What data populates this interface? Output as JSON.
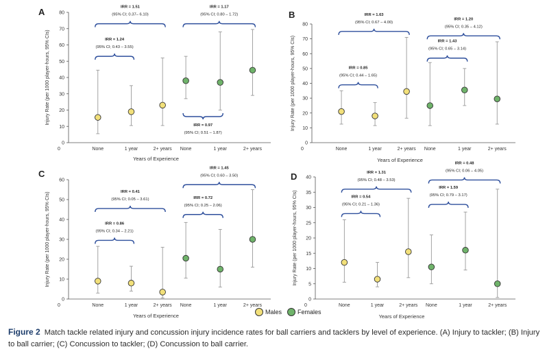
{
  "colors": {
    "male": "#f2e07a",
    "female": "#6fb36a",
    "bracket": "#2e4f9c",
    "error": "#999999",
    "axis": "#555555"
  },
  "legend": {
    "males": "Males",
    "females": "Females"
  },
  "caption": {
    "label": "Figure 2",
    "text": "Match tackle related injury and concussion injury incidence rates for ball carriers and tacklers by level of experience. (A) Injury to tackler; (B) Injury to ball carrier; (C) Concussion to tackler; (D) Concussion to ball carrier."
  },
  "chart_data": [
    {
      "panel": "A",
      "type": "scatter",
      "ylabel": "Injury Rate (per 1000 player-hours, 95% CIs)",
      "xlabel": "Years of Experience",
      "ylim": [
        0,
        80
      ],
      "yticks": [
        0,
        10,
        20,
        30,
        40,
        50,
        60,
        70,
        80
      ],
      "categories": [
        "None",
        "1 year",
        "2+ years",
        "None",
        "1 year",
        "2+ years"
      ],
      "groups": [
        "male",
        "male",
        "male",
        "female",
        "female",
        "female"
      ],
      "values": [
        15.5,
        19,
        23,
        38,
        37,
        44.5
      ],
      "ci_low": [
        5.5,
        10.5,
        10.5,
        27,
        20,
        29
      ],
      "ci_high": [
        44.5,
        35,
        52,
        53,
        68,
        69.5
      ],
      "brackets": [
        {
          "from": 0,
          "to": 1,
          "y": 53,
          "side": "top",
          "line1": "IRR = 1.24",
          "line2": "(95% CI; 0.43 – 3.55)"
        },
        {
          "from": 0,
          "to": 2,
          "y": 73,
          "side": "top",
          "line1": "IRR = 1.51",
          "line2": "(95% CI; 0.37– 6.10)"
        },
        {
          "from": 3,
          "to": 5,
          "y": 73,
          "side": "top",
          "line1": "IRR = 1.17",
          "line2": "(95% CI; 0.80 – 1.72)"
        },
        {
          "from": 3,
          "to": 4,
          "y": 16,
          "side": "bottom",
          "line1": "IRR = 0.97",
          "line2": "(95% CI; 0.51 – 1.87)"
        }
      ]
    },
    {
      "panel": "B",
      "type": "scatter",
      "ylabel": "Injury Rate (per 1000 player-hours, 95% CIs)",
      "xlabel": "Years of Experience",
      "ylim": [
        0,
        80
      ],
      "yticks": [
        0,
        10,
        20,
        30,
        40,
        50,
        60,
        70,
        80
      ],
      "categories": [
        "None",
        "1 year",
        "2+ years",
        "None",
        "1 year",
        "2+ years"
      ],
      "groups": [
        "male",
        "male",
        "male",
        "female",
        "female",
        "female"
      ],
      "values": [
        21,
        18,
        34.5,
        25,
        35.5,
        29.5
      ],
      "ci_low": [
        12.5,
        11.5,
        16.5,
        11.5,
        25,
        12.5
      ],
      "ci_high": [
        35,
        27,
        71,
        54,
        50,
        68
      ],
      "brackets": [
        {
          "from": 0,
          "to": 1,
          "y": 39,
          "side": "top",
          "line1": "IRR = 0.85",
          "line2": "(95% CI; 0.44 – 1.65)"
        },
        {
          "from": 0,
          "to": 2,
          "y": 75,
          "side": "top",
          "line1": "IRR = 1.63",
          "line2": "(95% CI; 0.67 – 4.00)"
        },
        {
          "from": 3,
          "to": 4,
          "y": 57,
          "side": "top",
          "line1": "IRR = 1.43",
          "line2": "(95% CI; 0.65 – 3.14)"
        },
        {
          "from": 3,
          "to": 5,
          "y": 72,
          "side": "top",
          "line1": "IRR = 1.20",
          "line2": "(95% CI; 0.35 – 4.12)"
        }
      ]
    },
    {
      "panel": "C",
      "type": "scatter",
      "ylabel": "Injury Rate (per 1000 player-hours, 95% CIs)",
      "xlabel": "Years of Experience",
      "ylim": [
        0,
        60
      ],
      "yticks": [
        0,
        10,
        20,
        30,
        40,
        50,
        60
      ],
      "categories": [
        "None",
        "1 year",
        "2+ years",
        "None",
        "1 year",
        "2+ years"
      ],
      "groups": [
        "male",
        "male",
        "male",
        "female",
        "female",
        "female"
      ],
      "values": [
        9,
        8,
        3.5,
        20.5,
        15,
        30
      ],
      "ci_low": [
        3,
        4,
        0.5,
        10.5,
        6,
        16
      ],
      "ci_high": [
        26.5,
        16.5,
        26,
        38.5,
        35,
        55
      ],
      "brackets": [
        {
          "from": 0,
          "to": 1,
          "y": 29.5,
          "side": "top",
          "line1": "IRR = 0.86",
          "line2": "(95% CI; 0.34 – 2.21)"
        },
        {
          "from": 0,
          "to": 2,
          "y": 45.5,
          "side": "top",
          "line1": "IRR = 0.41",
          "line2": "(95% CI; 0.05 – 3.61)"
        },
        {
          "from": 3,
          "to": 4,
          "y": 42.5,
          "side": "top",
          "line1": "IRR = 0.72",
          "line2": "(95% CI; 0.25 – 2.06)"
        },
        {
          "from": 3,
          "to": 5,
          "y": 57.5,
          "side": "top",
          "line1": "IRR = 1.45",
          "line2": "(95% CI; 0.60 – 3.50)"
        }
      ]
    },
    {
      "panel": "D",
      "type": "scatter",
      "ylabel": "Injury Rate (per 1000 player-hours, 95% CIs)",
      "xlabel": "Years of Experience",
      "ylim": [
        0,
        40
      ],
      "yticks": [
        0,
        5,
        10,
        15,
        20,
        25,
        30,
        35,
        40
      ],
      "categories": [
        "None",
        "1 year",
        "2+ years",
        "None",
        "1 year",
        "2+ years"
      ],
      "groups": [
        "male",
        "male",
        "male",
        "female",
        "female",
        "female"
      ],
      "values": [
        12,
        6.5,
        15.5,
        10.5,
        16,
        5
      ],
      "ci_low": [
        5.5,
        4,
        7,
        5,
        9.5,
        0.5
      ],
      "ci_high": [
        26,
        12,
        33,
        21,
        28.5,
        36
      ],
      "brackets": [
        {
          "from": 0,
          "to": 1,
          "y": 28,
          "side": "top",
          "line1": "IRR = 0.54",
          "line2": "(95% CI; 0.21 – 1.36)"
        },
        {
          "from": 0,
          "to": 2,
          "y": 36,
          "side": "top",
          "line1": "IRR = 1.31",
          "line2": "(95% CI; 0.48 – 3.53)"
        },
        {
          "from": 3,
          "to": 4,
          "y": 31,
          "side": "top",
          "line1": "IRR = 1.59",
          "line2": "(95% CI; 0.79 – 3.17)"
        },
        {
          "from": 3,
          "to": 5,
          "y": 39,
          "side": "top",
          "line1": "IRR = 0.48",
          "line2": "(95% CI; 0.06 – 4.05)"
        }
      ]
    }
  ]
}
